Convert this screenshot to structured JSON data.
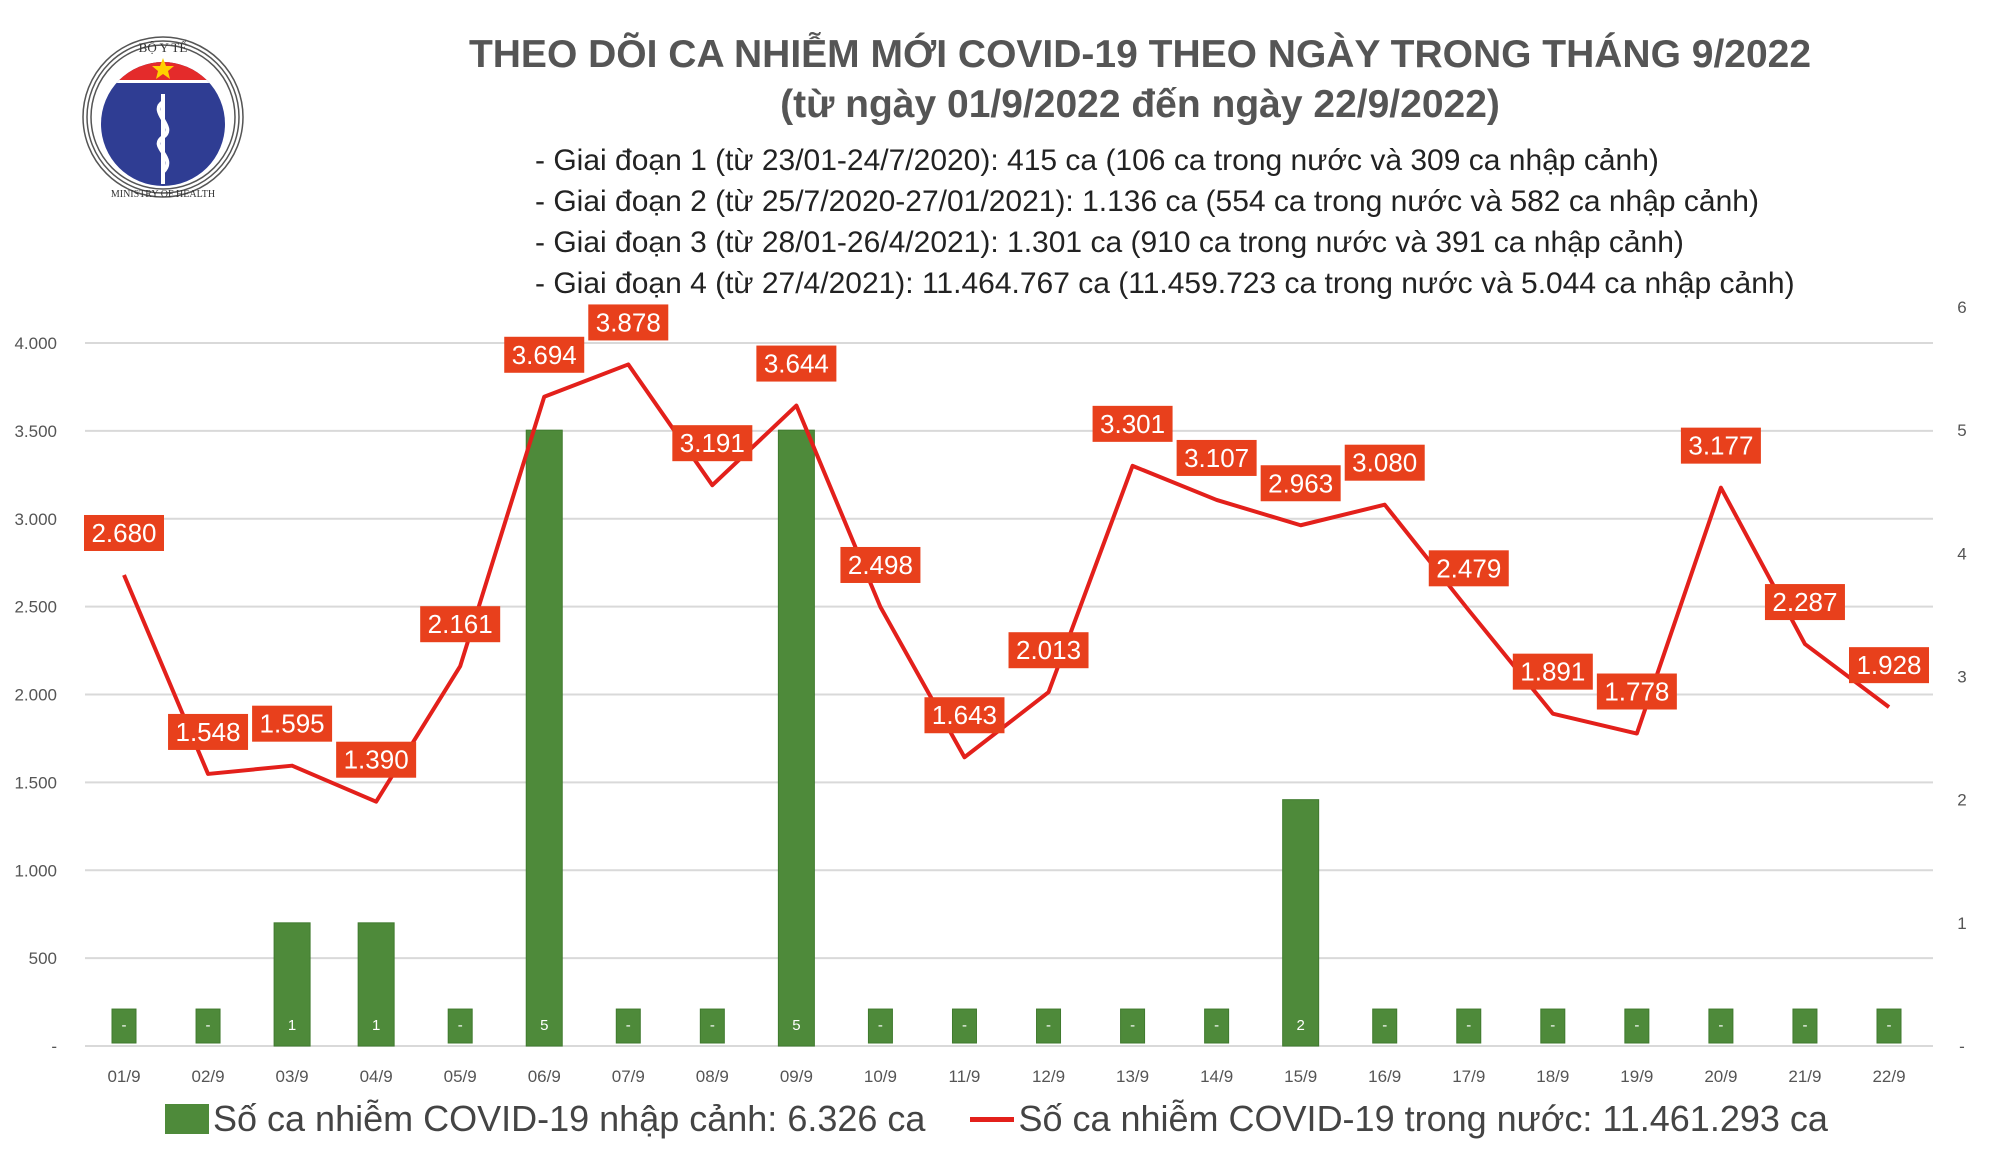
{
  "logo": {
    "top_text": "BỘ Y TẾ",
    "bottom_text": "MINISTRY OF HEALTH"
  },
  "title": [
    "THEO DÕI CA NHIỄM MỚI COVID-19 THEO NGÀY TRONG THÁNG 9/2022",
    "(từ ngày 01/9/2022 đến ngày 22/9/2022)"
  ],
  "notes": [
    "- Giai đoạn 1 (từ 23/01-24/7/2020): 415 ca (106 ca trong nước và 309 ca nhập cảnh)",
    "- Giai đoạn 2 (từ 25/7/2020-27/01/2021): 1.136 ca (554 ca trong nước và 582 ca nhập cảnh)",
    "- Giai đoạn 3 (từ 28/01-26/4/2021): 1.301 ca (910 ca trong nước và 391 ca nhập cảnh)",
    "- Giai đoạn 4 (từ 27/4/2021): 11.464.767 ca (11.459.723 ca trong nước và 5.044 ca nhập cảnh)"
  ],
  "chart_data": {
    "type": "bar+line",
    "categories": [
      "01/9",
      "02/9",
      "03/9",
      "04/9",
      "05/9",
      "06/9",
      "07/9",
      "08/9",
      "09/9",
      "10/9",
      "11/9",
      "12/9",
      "13/9",
      "14/9",
      "15/9",
      "16/9",
      "17/9",
      "18/9",
      "19/9",
      "20/9",
      "21/9",
      "22/9"
    ],
    "series": [
      {
        "name": "Số ca nhiễm COVID-19 nhập cảnh: 6.326 ca",
        "type": "bar",
        "axis": "right",
        "color": "#4e8a3a",
        "values": [
          0,
          0,
          1,
          1,
          0,
          5,
          0,
          0,
          5,
          0,
          0,
          0,
          0,
          0,
          2,
          0,
          0,
          0,
          0,
          0,
          0,
          0
        ],
        "labels": [
          "-",
          "-",
          "1",
          "1",
          "-",
          "5",
          "-",
          "-",
          "5",
          "-",
          "-",
          "-",
          "-",
          "-",
          "2",
          "-",
          "-",
          "-",
          "-",
          "-",
          "-",
          "-"
        ]
      },
      {
        "name": "Số ca nhiễm COVID-19 trong nước: 11.461.293 ca",
        "type": "line",
        "axis": "left",
        "color": "#e3201b",
        "values": [
          2680,
          1548,
          1595,
          1390,
          2161,
          3694,
          3878,
          3191,
          3644,
          2498,
          1643,
          2013,
          3301,
          3107,
          2963,
          3080,
          2479,
          1891,
          1778,
          3177,
          2287,
          1928
        ],
        "labels": [
          "2.680",
          "1.548",
          "1.595",
          "1.390",
          "2.161",
          "3.694",
          "3.878",
          "3.191",
          "3.644",
          "2.498",
          "1.643",
          "2.013",
          "3.301",
          "3.107",
          "2.963",
          "3.080",
          "2.479",
          "1.891",
          "1.778",
          "3.177",
          "2.287",
          "1.928"
        ]
      }
    ],
    "left_axis": {
      "range": [
        0,
        4000
      ],
      "ticks": [
        "-",
        "500",
        "1.000",
        "1.500",
        "2.000",
        "2.500",
        "3.000",
        "3.500",
        "4.000"
      ]
    },
    "right_axis": {
      "range": [
        0,
        6
      ],
      "ticks": [
        "-",
        "1",
        "2",
        "3",
        "4",
        "5",
        "6"
      ]
    },
    "grid": true,
    "legend": "bottom",
    "label_color": "#e8401c"
  }
}
